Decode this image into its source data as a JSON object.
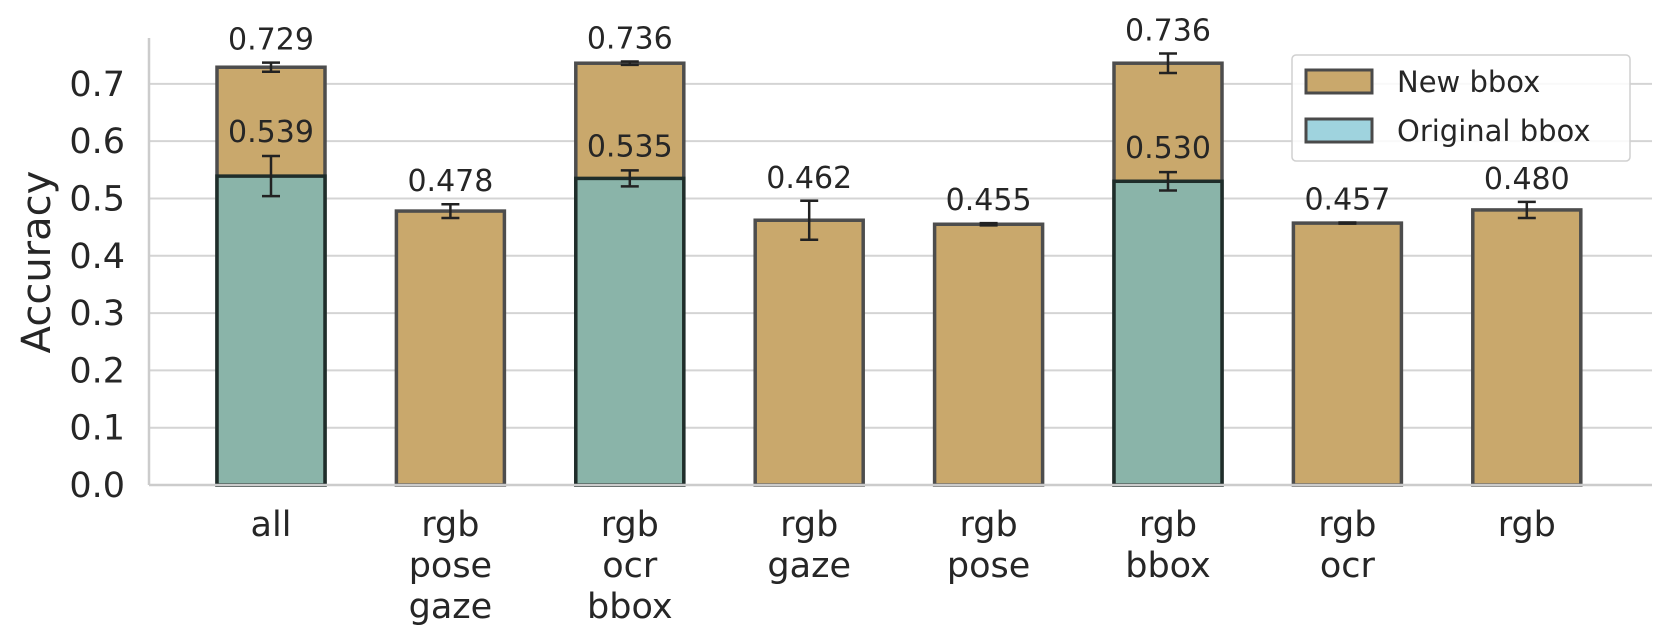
{
  "chart_data": {
    "type": "bar",
    "title": "",
    "xlabel": "",
    "ylabel": "Accuracy",
    "ylim": [
      0,
      0.78
    ],
    "yticks": [
      "0.0",
      "0.1",
      "0.2",
      "0.3",
      "0.4",
      "0.5",
      "0.6",
      "0.7"
    ],
    "grid": "horizontal",
    "legend_position": "top-right",
    "categories": [
      [
        "all"
      ],
      [
        "rgb",
        "pose",
        "gaze"
      ],
      [
        "rgb",
        "ocr",
        "bbox"
      ],
      [
        "rgb",
        "gaze"
      ],
      [
        "rgb",
        "pose"
      ],
      [
        "rgb",
        "bbox"
      ],
      [
        "rgb",
        "ocr"
      ],
      [
        "rgb"
      ]
    ],
    "series": [
      {
        "name": "New bbox",
        "color": "#c9a86c",
        "values": [
          0.729,
          0.478,
          0.736,
          0.462,
          0.455,
          0.736,
          0.457,
          0.48
        ],
        "errors": [
          0.008,
          0.012,
          0.003,
          0.034,
          0.002,
          0.017,
          0.001,
          0.014
        ],
        "labels": [
          "0.729",
          "0.478",
          "0.736",
          "0.462",
          "0.455",
          "0.736",
          "0.457",
          "0.480"
        ]
      },
      {
        "name": "Original bbox",
        "color": "#8ab4a9",
        "legend_color": "#9fd3de",
        "values": [
          0.539,
          null,
          0.535,
          null,
          null,
          0.53,
          null,
          null
        ],
        "errors": [
          0.035,
          null,
          0.014,
          null,
          null,
          0.016,
          null,
          null
        ],
        "labels": [
          "0.539",
          null,
          "0.535",
          null,
          null,
          "0.530",
          null,
          null
        ]
      }
    ]
  }
}
